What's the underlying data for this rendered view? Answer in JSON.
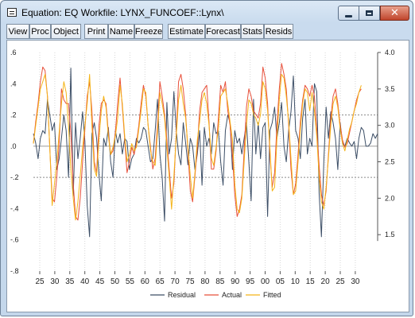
{
  "window": {
    "title": "Equation: EQ    Workfile: LYNX_FUNCOEF::Lynx\\",
    "controls": {
      "minimize": "minimize",
      "maximize": "maximize",
      "close": "✕"
    }
  },
  "toolbar": {
    "buttons": [
      "View",
      "Proc",
      "Object",
      "Print",
      "Name",
      "Freeze",
      "Estimate",
      "Forecast",
      "Stats",
      "Resids"
    ]
  },
  "chart_data": {
    "type": "line",
    "x_ticks": [
      "25",
      "30",
      "35",
      "40",
      "45",
      "50",
      "55",
      "60",
      "65",
      "70",
      "75",
      "80",
      "85",
      "90",
      "95",
      "00",
      "05",
      "10",
      "15",
      "20",
      "25",
      "30"
    ],
    "left_axis": {
      "ticks": [
        ".6",
        ".4",
        ".2",
        ".0",
        "-.2",
        "-.4",
        "-.6",
        "-.8"
      ],
      "ylim": [
        -0.8,
        0.6
      ]
    },
    "right_axis": {
      "ticks": [
        "4.0",
        "3.5",
        "3.0",
        "2.5",
        "2.0",
        "1.5"
      ],
      "ylim": [
        1.0,
        4.0
      ]
    },
    "reference_lines": [
      0.2,
      0.0,
      -0.2
    ],
    "legend": {
      "position": "bottom",
      "entries": [
        "Residual",
        "Actual",
        "Fitted"
      ]
    },
    "colors": {
      "residual": "#3c4e66",
      "actual": "#e8503b",
      "fitted": "#f4b418",
      "grid": "#b0b0b0"
    },
    "series": [
      {
        "name": "Residual",
        "axis": "left",
        "values": [
          0.08,
          0.02,
          -0.08,
          0.05,
          0.1,
          0.08,
          0.3,
          0.2,
          0.1,
          0.15,
          -0.15,
          -0.08,
          0.05,
          0.2,
          0.1,
          -0.2,
          0.5,
          -0.32,
          0.15,
          -0.08,
          0.05,
          0.22,
          0.03,
          -0.38,
          -0.58,
          0.08,
          0.15,
          0.05,
          -0.18,
          -0.35,
          0.05,
          0.0,
          0.12,
          -0.1,
          -0.2,
          0.1,
          0.02,
          0.08,
          -0.05,
          0.05,
          0.03,
          -0.15,
          -0.08,
          -0.05,
          0.05,
          0.02,
          0.05,
          0.12,
          0.1,
          0.0,
          -0.1,
          -0.08,
          0.1,
          0.3,
          -0.05,
          -0.2,
          -0.48,
          0.28,
          -0.05,
          0.05,
          0.35,
          0.1,
          -0.05,
          -0.12,
          0.15,
          0.02,
          -0.12,
          0.05,
          0.0,
          -0.15,
          -0.05,
          0.1,
          -0.25,
          0.12,
          0.0,
          0.05,
          -0.05,
          0.15,
          0.08,
          0.1,
          -0.1,
          -0.25,
          0.1,
          0.2,
          0.15,
          -0.15,
          0.1,
          0.02,
          0.05,
          -0.05,
          0.05,
          0.15,
          -0.1,
          -0.35,
          0.3,
          -0.05,
          0.15,
          -0.08,
          0.12,
          0.15,
          -0.45,
          0.1,
          0.15,
          0.25,
          0.05,
          0.15,
          0.28,
          0.0,
          -0.1,
          0.1,
          0.22,
          0.45,
          0.1,
          0.05,
          -0.08,
          0.18,
          0.3,
          -0.05,
          0.05,
          0.0,
          0.4,
          0.35,
          -0.3,
          -0.58,
          -0.1,
          0.25,
          0.05,
          0.22,
          0.15,
          0.05,
          -0.15,
          0.15,
          0.02,
          0.0,
          0.05,
          0.02,
          0.0,
          0.03,
          -0.08,
          0.05,
          0.12,
          0.1,
          0.0,
          0.0,
          0.02,
          0.08,
          0.05,
          0.08
        ]
      },
      {
        "name": "Actual",
        "axis": "right",
        "values": [
          2.75,
          3.05,
          3.3,
          3.6,
          3.8,
          3.75,
          3.4,
          2.7,
          2.0,
          1.95,
          2.3,
          2.75,
          3.5,
          3.35,
          3.3,
          3.3,
          2.9,
          2.2,
          1.75,
          1.7,
          2.0,
          2.5,
          2.95,
          3.4,
          3.6,
          3.2,
          2.5,
          2.35,
          3.0,
          3.3,
          3.35,
          3.3,
          2.9,
          2.6,
          2.65,
          2.9,
          3.3,
          3.65,
          3.25,
          2.8,
          2.35,
          2.5,
          2.7,
          2.6,
          2.75,
          3.0,
          3.3,
          3.55,
          3.4,
          3.0,
          2.7,
          2.4,
          2.55,
          3.0,
          3.6,
          3.4,
          3.15,
          2.8,
          2.4,
          2.0,
          2.2,
          2.9,
          3.6,
          3.7,
          3.5,
          3.15,
          2.65,
          2.1,
          1.95,
          2.3,
          2.7,
          3.2,
          3.45,
          3.5,
          3.55,
          3.05,
          2.4,
          2.4,
          2.65,
          3.1,
          3.55,
          3.45,
          3.6,
          3.2,
          3.0,
          2.6,
          2.05,
          1.75,
          1.85,
          2.05,
          2.65,
          3.25,
          3.5,
          3.4,
          3.2,
          3.15,
          3.1,
          3.3,
          3.8,
          3.65,
          3.3,
          2.6,
          2.15,
          2.35,
          3.0,
          3.5,
          3.85,
          3.7,
          3.5,
          3.0,
          2.4,
          2.05,
          2.2,
          2.6,
          3.05,
          3.35,
          3.55,
          3.5,
          3.4,
          3.55,
          3.4,
          2.95,
          2.45,
          2.05,
          1.9,
          2.1,
          2.6,
          3.1,
          3.4,
          3.5,
          3.3,
          3.0,
          2.8,
          2.7,
          2.75,
          2.9,
          3.05,
          3.2,
          3.35,
          3.45,
          3.5
        ]
      },
      {
        "name": "Fitted",
        "axis": "right",
        "values": [
          2.75,
          3.0,
          3.25,
          3.5,
          3.6,
          3.7,
          3.4,
          2.7,
          1.9,
          2.2,
          2.5,
          2.9,
          3.3,
          3.6,
          3.45,
          3.0,
          2.4,
          2.0,
          1.7,
          1.95,
          2.3,
          2.7,
          3.0,
          3.3,
          3.7,
          3.0,
          2.4,
          2.3,
          2.8,
          3.2,
          3.4,
          3.25,
          2.85,
          2.6,
          2.7,
          2.85,
          3.1,
          3.55,
          3.3,
          2.85,
          2.5,
          2.6,
          2.75,
          2.65,
          2.7,
          2.95,
          3.2,
          3.5,
          3.45,
          3.0,
          2.65,
          2.5,
          2.45,
          2.9,
          3.45,
          3.3,
          3.1,
          2.7,
          2.3,
          1.85,
          2.3,
          2.85,
          3.35,
          3.55,
          3.3,
          3.1,
          2.7,
          2.3,
          2.0,
          2.35,
          2.8,
          3.05,
          3.35,
          3.45,
          3.3,
          3.0,
          2.55,
          2.45,
          2.7,
          2.95,
          3.4,
          3.45,
          3.5,
          3.3,
          3.05,
          2.8,
          2.2,
          1.85,
          1.8,
          2.0,
          2.5,
          3.0,
          3.35,
          3.3,
          3.15,
          3.1,
          3.0,
          3.15,
          3.6,
          3.5,
          3.2,
          2.7,
          2.1,
          2.15,
          2.8,
          3.35,
          3.7,
          3.65,
          3.4,
          3.05,
          2.55,
          2.05,
          2.1,
          2.5,
          2.95,
          3.3,
          3.5,
          3.45,
          3.2,
          3.45,
          3.2,
          2.85,
          2.3,
          1.95,
          1.85,
          2.15,
          2.55,
          3.0,
          3.3,
          3.4,
          3.25,
          2.95,
          2.75,
          2.65,
          2.8,
          2.95,
          3.05,
          3.2,
          3.3,
          3.45,
          3.55
        ]
      }
    ]
  }
}
